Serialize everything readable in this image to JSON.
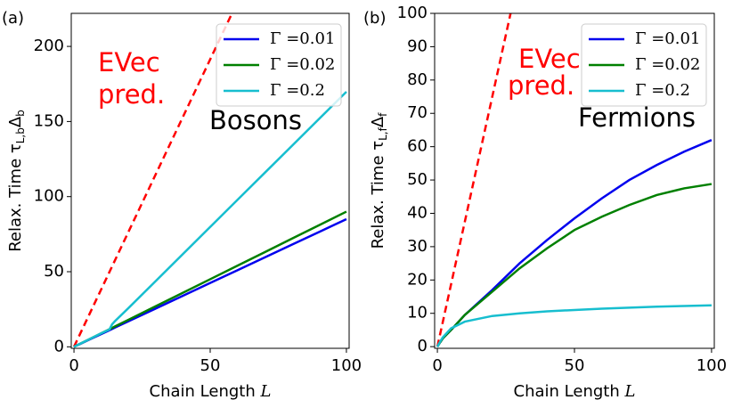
{
  "chart_data": [
    {
      "type": "line",
      "panel_label": "(a)",
      "xlabel_parts": [
        "Chain Length ",
        "L"
      ],
      "ylabel_parts": [
        "Relax. Time τ",
        "L,b",
        "Δ",
        "b"
      ],
      "annotations": [
        "EVec",
        "pred.",
        "Bosons"
      ],
      "xlim": [
        -1,
        101
      ],
      "ylim": [
        -1,
        222
      ],
      "xticks": [
        0,
        50,
        100
      ],
      "yticks": [
        0,
        50,
        100,
        150,
        200
      ],
      "legend": "upper right",
      "x": [
        0,
        1,
        2,
        5,
        10,
        13,
        14,
        15,
        20,
        30,
        40,
        50,
        60,
        70,
        80,
        90,
        100
      ],
      "series": [
        {
          "name": "Γ =0.01",
          "color": "#0000ee",
          "values": [
            0,
            0.9,
            1.7,
            4.3,
            8.5,
            11,
            11.9,
            12.8,
            17,
            25.5,
            34,
            42.5,
            51,
            59.5,
            68,
            76.5,
            85
          ]
        },
        {
          "name": "Γ =0.02",
          "color": "#008000",
          "values": [
            0,
            0.9,
            1.8,
            4.5,
            9,
            11.7,
            12.6,
            13.5,
            18,
            27,
            36,
            45,
            54,
            63,
            72,
            81,
            90
          ]
        },
        {
          "name": "Γ =0.2",
          "color": "#17becf",
          "values": [
            0,
            0.9,
            1.8,
            4.5,
            9,
            11.5,
            15,
            17,
            25.8,
            43.8,
            61.8,
            79.8,
            97.8,
            115.8,
            133.8,
            151.8,
            169.8
          ]
        }
      ],
      "reference_line": {
        "color": "#ff0000",
        "x": [
          0,
          58
        ],
        "values": [
          0,
          222
        ]
      }
    },
    {
      "type": "line",
      "panel_label": "(b)",
      "xlabel_parts": [
        "Chain Length ",
        "L"
      ],
      "ylabel_parts": [
        "Relax. Time τ",
        "L,f",
        "Δ",
        "f"
      ],
      "annotations": [
        "EVec",
        "pred.",
        "Fermions"
      ],
      "xlim": [
        -1,
        101
      ],
      "ylim": [
        -0.5,
        100
      ],
      "xticks": [
        0,
        50,
        100
      ],
      "yticks": [
        0,
        10,
        20,
        30,
        40,
        50,
        60,
        70,
        80,
        90,
        100
      ],
      "legend": "upper right",
      "x": [
        0,
        1,
        2,
        5,
        10,
        20,
        30,
        40,
        50,
        60,
        70,
        80,
        90,
        100
      ],
      "series": [
        {
          "name": "Γ =0.01",
          "color": "#0000ee",
          "values": [
            0,
            1.3,
            2.5,
            5,
            9.5,
            17,
            25,
            32,
            38.5,
            44.5,
            50,
            54.5,
            58.5,
            62
          ]
        },
        {
          "name": "Γ =0.02",
          "color": "#008000",
          "values": [
            0,
            1.3,
            2.5,
            5,
            9.5,
            16.5,
            23.5,
            29.5,
            35,
            39,
            42.5,
            45.5,
            47.5,
            48.8
          ]
        },
        {
          "name": "Γ =0.2",
          "color": "#17becf",
          "values": [
            0,
            1.5,
            2.8,
            5.5,
            7.5,
            9.2,
            10,
            10.6,
            11,
            11.4,
            11.7,
            12,
            12.2,
            12.4
          ]
        }
      ],
      "reference_line": {
        "color": "#ff0000",
        "x": [
          0,
          26.7
        ],
        "values": [
          0,
          100
        ]
      }
    }
  ]
}
